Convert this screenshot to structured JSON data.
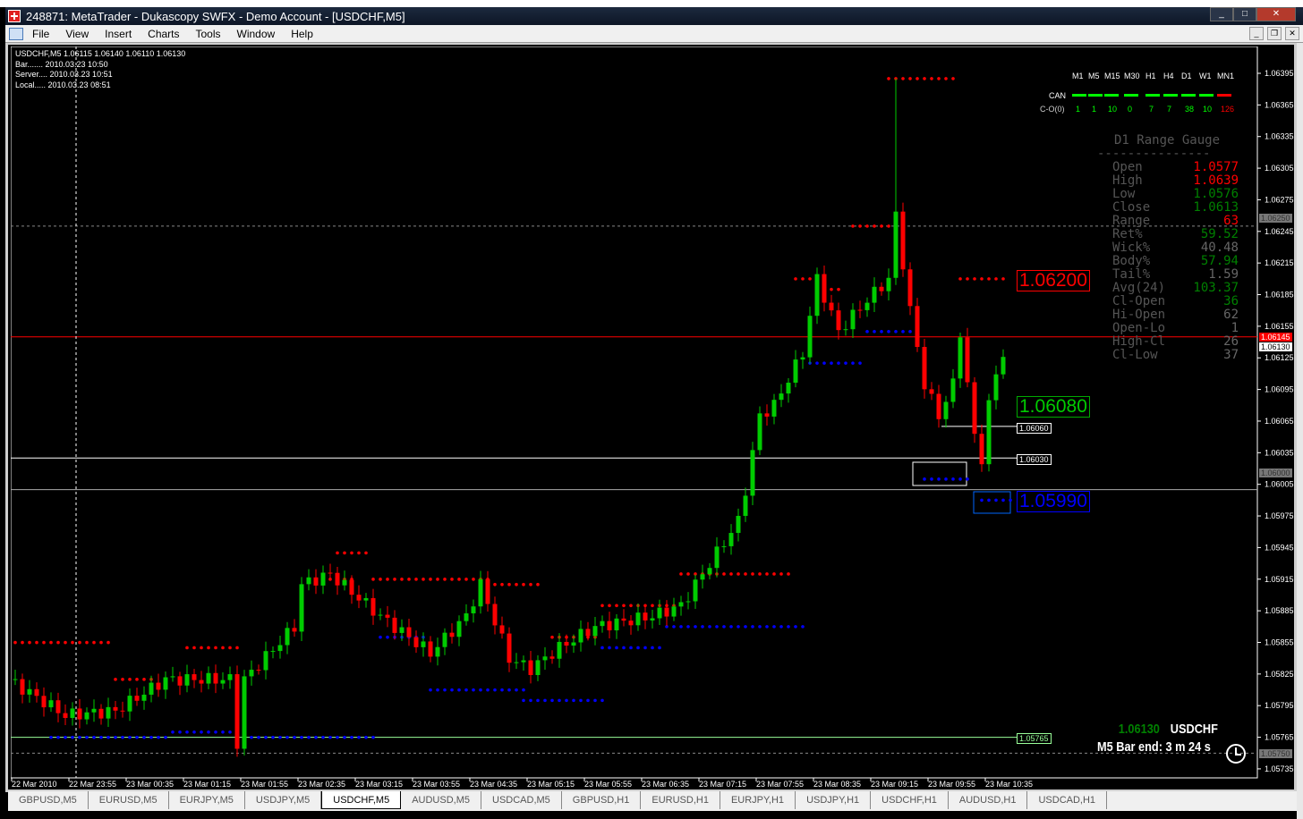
{
  "window": {
    "title": "248871: MetaTrader - Dukascopy SWFX - Demo Account - [USDCHF,M5]"
  },
  "menu": [
    "File",
    "View",
    "Insert",
    "Charts",
    "Tools",
    "Window",
    "Help"
  ],
  "info": {
    "line1": "USDCHF,M5  1.06115 1.06140 1.06110 1.06130",
    "bar": "Bar....... 2010.03.23 10:50",
    "server": "Server.... 2010.03.23 10:51",
    "local": "Local..... 2010.03.23 08:51"
  },
  "mtf": {
    "timeframes": [
      "M1",
      "M5",
      "M15",
      "M30",
      "H1",
      "H4",
      "D1",
      "W1",
      "MN1"
    ],
    "can_label": "CAN",
    "co_label": "C-O(0)",
    "co_values": [
      "1",
      "1",
      "10",
      "0",
      "7",
      "7",
      "38",
      "10",
      "126"
    ],
    "colors": [
      "#00ff00",
      "#00ff00",
      "#00ff00",
      "#00ff00",
      "#00ff00",
      "#00ff00",
      "#00ff00",
      "#00ff00",
      "#ff0000"
    ]
  },
  "gauge": {
    "title": "D1 Range Gauge",
    "divider": "---------------",
    "rows": [
      {
        "label": "Open",
        "value": "1.0577",
        "color": "#ff0000"
      },
      {
        "label": "High",
        "value": "1.0639",
        "color": "#ff0000"
      },
      {
        "label": "Low",
        "value": "1.0576",
        "color": "#008000"
      },
      {
        "label": "Close",
        "value": "1.0613",
        "color": "#008000"
      },
      {
        "label": "Range",
        "value": "63",
        "color": "#ff0000"
      },
      {
        "label": "Ret%",
        "value": "59.52",
        "color": "#008000"
      },
      {
        "label": "Wick%",
        "value": "40.48",
        "color": "#666666"
      },
      {
        "label": "Body%",
        "value": "57.94",
        "color": "#008000"
      },
      {
        "label": "Tail%",
        "value": "1.59",
        "color": "#666666"
      },
      {
        "label": "Avg(24)",
        "value": "103.37",
        "color": "#008000"
      },
      {
        "label": "Cl-Open",
        "value": "36",
        "color": "#008000"
      },
      {
        "label": "Hi-Open",
        "value": "62",
        "color": "#666666"
      },
      {
        "label": "Open-Lo",
        "value": "1",
        "color": "#666666"
      },
      {
        "label": "High-Cl",
        "value": "26",
        "color": "#666666"
      },
      {
        "label": "Cl-Low",
        "value": "37",
        "color": "#666666"
      }
    ]
  },
  "levels": {
    "resistance": "1.06200",
    "pivot": "1.06080",
    "support": "1.05990",
    "l1": "1.06060",
    "l2": "1.06030",
    "l3": "1.05765",
    "bid": "1.06145",
    "last": "1.06130",
    "grey1": "1.06250",
    "grey2": "1.06000",
    "grey3": "1.05750"
  },
  "bottom": {
    "price": "1.06130",
    "symbol": "USDCHF",
    "bar_end": "M5 Bar end: 3 m 24 s"
  },
  "price_axis": [
    "1.06395",
    "1.06365",
    "1.06335",
    "1.06305",
    "1.06275",
    "1.06245",
    "1.06215",
    "1.06185",
    "1.06155",
    "1.06125",
    "1.06095",
    "1.06065",
    "1.06035",
    "1.06005",
    "1.05975",
    "1.05945",
    "1.05915",
    "1.05885",
    "1.05855",
    "1.05825",
    "1.05795",
    "1.05765",
    "1.05735"
  ],
  "time_axis": [
    "22 Mar 2010",
    "22 Mar 23:55",
    "23 Mar 00:35",
    "23 Mar 01:15",
    "23 Mar 01:55",
    "23 Mar 02:35",
    "23 Mar 03:15",
    "23 Mar 03:55",
    "23 Mar 04:35",
    "23 Mar 05:15",
    "23 Mar 05:55",
    "23 Mar 06:35",
    "23 Mar 07:15",
    "23 Mar 07:55",
    "23 Mar 08:35",
    "23 Mar 09:15",
    "23 Mar 09:55",
    "23 Mar 10:35"
  ],
  "price_path": [
    [
      0,
      1.0582
    ],
    [
      8,
      1.05786
    ],
    [
      15,
      1.0579
    ],
    [
      22,
      1.0582
    ],
    [
      31,
      1.0582
    ],
    [
      32,
      1.0576
    ],
    [
      33,
      1.0582
    ],
    [
      40,
      1.0587
    ],
    [
      41,
      1.0591
    ],
    [
      45,
      1.0592
    ],
    [
      52,
      1.0588
    ],
    [
      59,
      1.05845
    ],
    [
      64,
      1.0588
    ],
    [
      66,
      1.0591
    ],
    [
      70,
      1.0584
    ],
    [
      73,
      1.0583
    ],
    [
      77,
      1.0585
    ],
    [
      82,
      1.0587
    ],
    [
      90,
      1.0588
    ],
    [
      94,
      1.0589
    ],
    [
      98,
      1.0593
    ],
    [
      102,
      1.0597
    ],
    [
      103,
      1.06
    ],
    [
      105,
      1.0607
    ],
    [
      107,
      1.0608
    ],
    [
      111,
      1.0613
    ],
    [
      113,
      1.062
    ],
    [
      116,
      1.0615
    ],
    [
      120,
      1.0618
    ],
    [
      123,
      1.062
    ],
    [
      124,
      1.0626
    ],
    [
      126,
      1.0617
    ],
    [
      128,
      1.061
    ],
    [
      130,
      1.0607
    ],
    [
      132,
      1.061
    ],
    [
      133,
      1.0615
    ],
    [
      135,
      1.0605
    ],
    [
      136,
      1.0603
    ],
    [
      137,
      1.0608
    ],
    [
      138,
      1.0611
    ],
    [
      139,
      1.0613
    ]
  ],
  "dot_levels": [
    {
      "price": 1.05855,
      "from": 0,
      "to": 13,
      "color": "#ff0000"
    },
    {
      "price": 1.05765,
      "from": 5,
      "to": 21,
      "color": "#0000ff"
    },
    {
      "price": 1.0582,
      "from": 14,
      "to": 19,
      "color": "#ff0000"
    },
    {
      "price": 1.0585,
      "from": 24,
      "to": 31,
      "color": "#ff0000"
    },
    {
      "price": 1.0577,
      "from": 22,
      "to": 31,
      "color": "#0000ff"
    },
    {
      "price": 1.05765,
      "from": 32,
      "to": 50,
      "color": "#0000ff"
    },
    {
      "price": 1.05915,
      "from": 41,
      "to": 47,
      "color": "#ff0000"
    },
    {
      "price": 1.0594,
      "from": 45,
      "to": 49,
      "color": "#ff0000"
    },
    {
      "price": 1.05915,
      "from": 50,
      "to": 66,
      "color": "#ff0000"
    },
    {
      "price": 1.0591,
      "from": 65,
      "to": 73,
      "color": "#ff0000"
    },
    {
      "price": 1.0586,
      "from": 51,
      "to": 57,
      "color": "#0000ff"
    },
    {
      "price": 1.0581,
      "from": 58,
      "to": 71,
      "color": "#0000ff"
    },
    {
      "price": 1.058,
      "from": 71,
      "to": 82,
      "color": "#0000ff"
    },
    {
      "price": 1.0586,
      "from": 75,
      "to": 81,
      "color": "#ff0000"
    },
    {
      "price": 1.0589,
      "from": 82,
      "to": 92,
      "color": "#ff0000"
    },
    {
      "price": 1.0585,
      "from": 82,
      "to": 90,
      "color": "#0000ff"
    },
    {
      "price": 1.0592,
      "from": 93,
      "to": 108,
      "color": "#ff0000"
    },
    {
      "price": 1.0587,
      "from": 91,
      "to": 110,
      "color": "#0000ff"
    },
    {
      "price": 1.062,
      "from": 109,
      "to": 111,
      "color": "#ff0000"
    },
    {
      "price": 1.0619,
      "from": 112,
      "to": 115,
      "color": "#ff0000"
    },
    {
      "price": 1.0612,
      "from": 111,
      "to": 118,
      "color": "#0000ff"
    },
    {
      "price": 1.0625,
      "from": 117,
      "to": 122,
      "color": "#ff0000"
    },
    {
      "price": 1.0615,
      "from": 119,
      "to": 126,
      "color": "#0000ff"
    },
    {
      "price": 1.0639,
      "from": 122,
      "to": 131,
      "color": "#ff0000"
    },
    {
      "price": 1.062,
      "from": 132,
      "to": 138,
      "color": "#ff0000"
    },
    {
      "price": 1.0601,
      "from": 127,
      "to": 133,
      "color": "#0000ff"
    },
    {
      "price": 1.0599,
      "from": 135,
      "to": 139,
      "color": "#0000ff"
    }
  ],
  "tabs": [
    {
      "label": "GBPUSD,M5"
    },
    {
      "label": "EURUSD,M5"
    },
    {
      "label": "EURJPY,M5"
    },
    {
      "label": "USDJPY,M5"
    },
    {
      "label": "USDCHF,M5",
      "active": true
    },
    {
      "label": "AUDUSD,M5"
    },
    {
      "label": "USDCAD,M5"
    },
    {
      "label": "GBPUSD,H1"
    },
    {
      "label": "EURUSD,H1"
    },
    {
      "label": "EURJPY,H1"
    },
    {
      "label": "USDJPY,H1"
    },
    {
      "label": "USDCHF,H1"
    },
    {
      "label": "AUDUSD,H1"
    },
    {
      "label": "USDCAD,H1"
    }
  ],
  "colors": {
    "bull": "#00cc00",
    "bear": "#ff0000",
    "background": "#000000",
    "bid_line": "#ff0000"
  }
}
